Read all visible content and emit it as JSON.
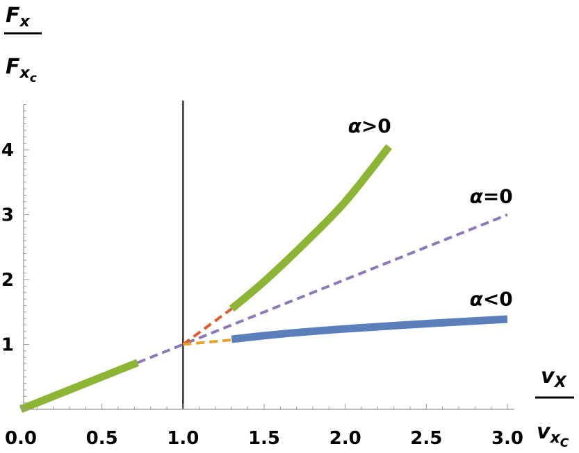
{
  "chart_data": {
    "type": "line",
    "xlim": [
      0,
      3.0
    ],
    "ylim": [
      0,
      4.7
    ],
    "x_ticks": [
      "0.0",
      "0.5",
      "1.0",
      "1.5",
      "2.0",
      "2.5",
      "3.0"
    ],
    "y_ticks": [
      "1",
      "2",
      "3",
      "4"
    ],
    "y_label": {
      "main": "F",
      "sub": "x",
      "denom_main": "F",
      "denom_sub": "x",
      "denom_subsub": "c"
    },
    "x_label": {
      "main": "v",
      "sub": "X",
      "denom_main": "v",
      "denom_sub": "x",
      "denom_subsub": "C"
    },
    "reference_line_x": 1.0,
    "annotations": [
      {
        "greek": "α",
        "text": ">0",
        "x": 2.15,
        "y": 4.27
      },
      {
        "greek": "α",
        "text": "=0",
        "x": 2.9,
        "y": 3.18
      },
      {
        "greek": "α",
        "text": "<0",
        "x": 2.9,
        "y": 1.6
      }
    ],
    "series": [
      {
        "style": "solid",
        "color": "#8cb435",
        "width": 11,
        "points": [
          [
            0,
            0
          ],
          [
            0.72,
            0.72
          ]
        ]
      },
      {
        "style": "solid",
        "color": "#8cb435",
        "width": 11,
        "points": [
          [
            1.3,
            1.55
          ],
          [
            1.5,
            1.97
          ],
          [
            1.75,
            2.56
          ],
          [
            2.0,
            3.2
          ],
          [
            2.27,
            4.05
          ]
        ]
      },
      {
        "style": "solid",
        "color": "#5a7fbb",
        "width": 11,
        "points": [
          [
            1.3,
            1.08
          ],
          [
            1.6,
            1.16
          ],
          [
            2.0,
            1.24
          ],
          [
            2.5,
            1.32
          ],
          [
            3.0,
            1.39
          ]
        ]
      },
      {
        "style": "dashed",
        "color": "#8d7ab5",
        "width": 4,
        "points": [
          [
            0.72,
            0.72
          ],
          [
            3.0,
            3.0
          ]
        ]
      },
      {
        "style": "dashed",
        "color": "#e05c2e",
        "width": 4,
        "points": [
          [
            1.0,
            1.0
          ],
          [
            1.3,
            1.55
          ]
        ]
      },
      {
        "style": "dashed",
        "color": "#e8a12a",
        "width": 4,
        "points": [
          [
            1.0,
            1.0
          ],
          [
            1.3,
            1.07
          ]
        ]
      }
    ]
  }
}
